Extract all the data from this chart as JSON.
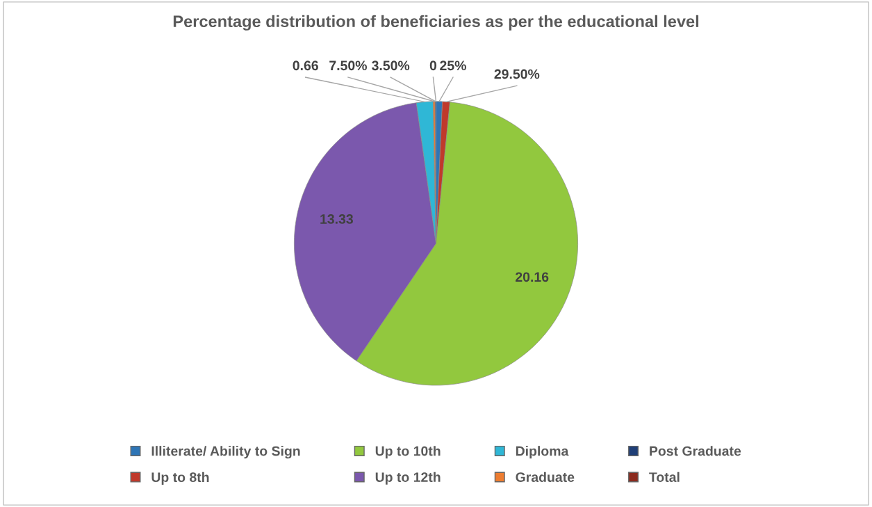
{
  "chart_data": {
    "type": "pie",
    "title": "Percentage distribution of beneficiaries as per the educational level",
    "categories": [
      "Illiterate/ Ability to Sign",
      "Up to 8th",
      "Up to 10th",
      "Up to 12th",
      "Diploma",
      "Graduate",
      "Post Graduate",
      "Total"
    ],
    "values": [
      0.25,
      0.295,
      20.16,
      13.33,
      0.66,
      0.075,
      0.035,
      0
    ],
    "value_labels": [
      "25%",
      "29.50%",
      "20.16",
      "13.33",
      "0.66",
      "7.50%",
      "3.50%",
      "0"
    ],
    "colors": [
      "#2e75b6",
      "#c0392b",
      "#92c83e",
      "#7b58ad",
      "#2fb7d6",
      "#ed7d31",
      "#1f3f77",
      "#8b2a1e"
    ],
    "legend": "bottom"
  }
}
